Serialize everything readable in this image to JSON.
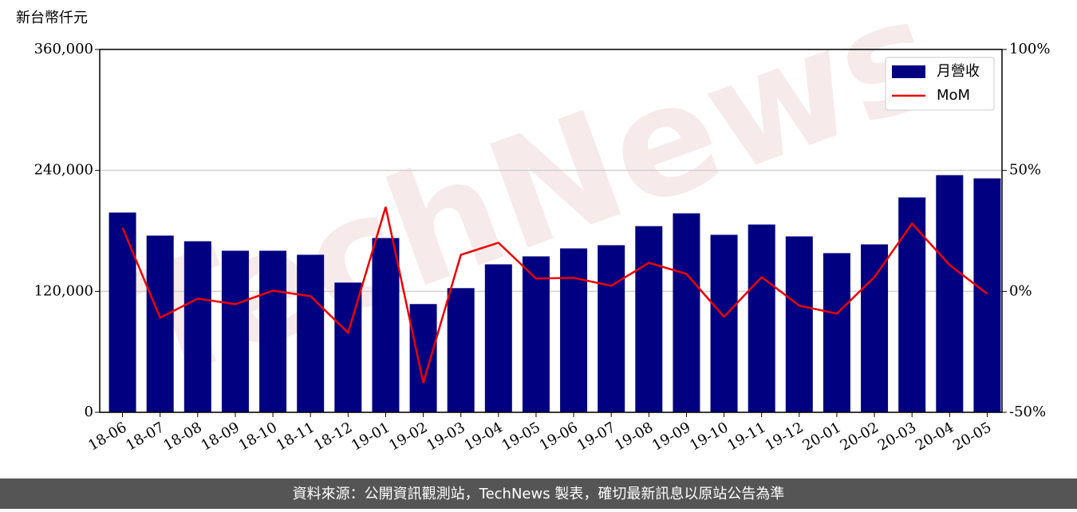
{
  "chart_data": {
    "type": "bar",
    "y_label": "新台幣仟元",
    "watermark": "TechNews",
    "footer": "資料來源：公開資訊觀測站，TechNews 製表，確切最新訊息以原站公告為準",
    "categories": [
      "18-06",
      "18-07",
      "18-08",
      "18-09",
      "18-10",
      "18-11",
      "18-12",
      "19-01",
      "19-02",
      "19-03",
      "19-04",
      "19-05",
      "19-06",
      "19-07",
      "19-08",
      "19-09",
      "19-10",
      "19-11",
      "19-12",
      "20-01",
      "20-02",
      "20-03",
      "20-04",
      "20-05"
    ],
    "series": [
      {
        "name": "月營收",
        "type": "bar",
        "color": "#000080",
        "values": [
          198200,
          175300,
          169700,
          160300,
          160300,
          156300,
          128700,
          172900,
          107400,
          123200,
          146800,
          154700,
          162600,
          165800,
          184700,
          197400,
          176100,
          186300,
          174500,
          157900,
          166600,
          213200,
          235300,
          232100
        ]
      },
      {
        "name": "MoM",
        "type": "line",
        "axis": "y2",
        "color": "#ee0000",
        "values": [
          26.3,
          -10.9,
          -3.0,
          -5.3,
          0.3,
          -2.0,
          -17.1,
          34.9,
          -37.8,
          15.1,
          20.1,
          5.3,
          5.6,
          2.3,
          11.8,
          7.2,
          -10.5,
          5.9,
          -5.9,
          -9.2,
          5.9,
          28.0,
          10.9,
          -1.0
        ]
      }
    ],
    "ylim": [
      0,
      360000
    ],
    "yticks": [
      {
        "value": 0,
        "label": "0"
      },
      {
        "value": 120000,
        "label": "120,000"
      },
      {
        "value": 240000,
        "label": "240,000"
      },
      {
        "value": 360000,
        "label": "360,000"
      }
    ],
    "y2lim": [
      -50,
      100
    ],
    "y2ticks": [
      {
        "value": -50,
        "label": "-50%"
      },
      {
        "value": 0,
        "label": "0%"
      },
      {
        "value": 50,
        "label": "50%"
      },
      {
        "value": 100,
        "label": "100%"
      }
    ],
    "grid": true,
    "legend": "upper right"
  }
}
